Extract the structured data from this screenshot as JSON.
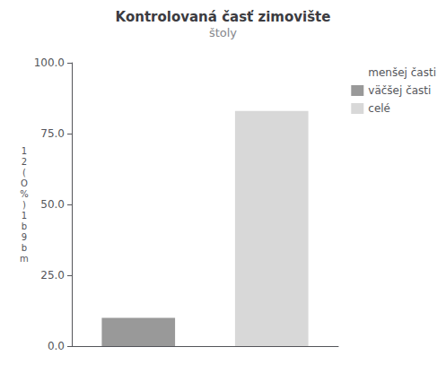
{
  "chart_data": {
    "type": "bar",
    "title": "Kontrolovaná časť zimovište",
    "subtitle": "štoly",
    "ylabel": "1\n2\n(\nO\n%\n)\n1\nb\n9\nb\nm",
    "categories": [
      null,
      null
    ],
    "series": [
      {
        "name": "menšej časti",
        "values": [
          null,
          null
        ]
      },
      {
        "name": "väčšej časti",
        "color": "#999999",
        "values": [
          10.0,
          null
        ]
      },
      {
        "name": "celé",
        "color": "#d8d8d8",
        "values": [
          null,
          83.0
        ]
      }
    ],
    "ylim": [
      0,
      100
    ],
    "yticks": [
      {
        "value": 0,
        "label": "0.0"
      },
      {
        "value": 25,
        "label": "25.0"
      },
      {
        "value": 50,
        "label": "50.0"
      },
      {
        "value": 75,
        "label": "75.0"
      },
      {
        "value": 100,
        "label": "100.0"
      }
    ],
    "grid": false,
    "legend": "upper right",
    "tick_labels": "y"
  }
}
